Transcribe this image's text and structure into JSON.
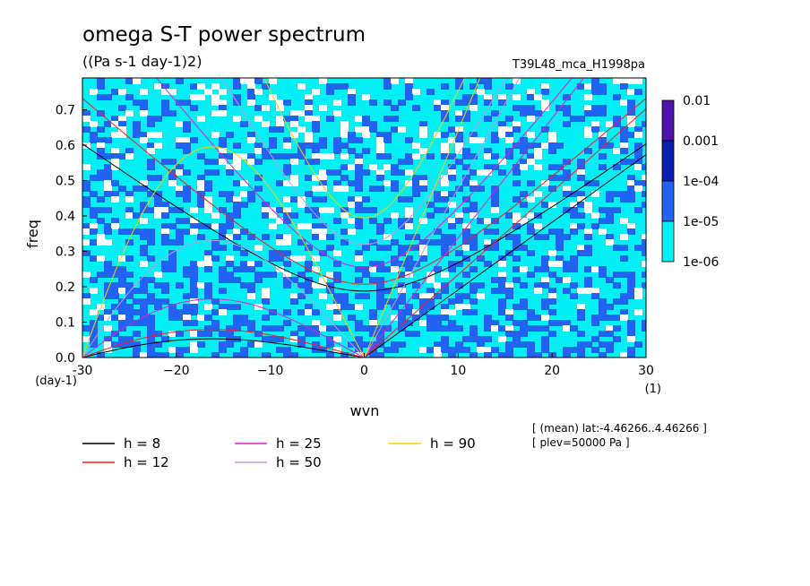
{
  "title": "omega S-T power spectrum",
  "units": "((Pa s-1 day-1)2)",
  "run_label": "T39L48_mca_H1998pa",
  "meta": {
    "line1": "[ (mean) lat:-4.46266..4.46266 ]",
    "line2": "[ plev=50000 Pa ]"
  },
  "chart_data": {
    "type": "heatmap",
    "title": "omega S-T power spectrum",
    "xlabel": "wvn",
    "ylabel": "freq",
    "x_unit": "(1)",
    "y_unit": "(day-1)",
    "xlim": [
      -30,
      30
    ],
    "ylim": [
      0.0,
      0.79
    ],
    "x_ticks": [
      -30,
      -20,
      -10,
      0,
      10,
      20,
      30
    ],
    "x_tick_labels": [
      "-30",
      "−20",
      "−10",
      "0",
      "10",
      "20",
      "30"
    ],
    "y_ticks": [
      0.0,
      0.1,
      0.2,
      0.3,
      0.4,
      0.5,
      0.6,
      0.7
    ],
    "y_tick_labels": [
      "0.0",
      "0.1",
      "0.2",
      "0.3",
      "0.4",
      "0.5",
      "0.6",
      "0.7"
    ],
    "colorbar": {
      "levels": [
        "0.01",
        "0.001",
        "1e-04",
        "1e-05",
        "1e-06"
      ],
      "colors": [
        "#4f12a8",
        "#0a1fb0",
        "#1f63f0",
        "#00f0f5"
      ]
    },
    "background_color": "#00f0f5",
    "dispersion_curves": [
      {
        "label": "h =  8",
        "h": 8,
        "color": "#000000"
      },
      {
        "label": "h = 12",
        "h": 12,
        "color": "#ff1a1a"
      },
      {
        "label": "h = 25",
        "h": 25,
        "color": "#e61ec8"
      },
      {
        "label": "h = 50",
        "h": 50,
        "color": "#c898dc"
      },
      {
        "label": "h = 90",
        "h": 90,
        "color": "#f5d200"
      }
    ]
  }
}
